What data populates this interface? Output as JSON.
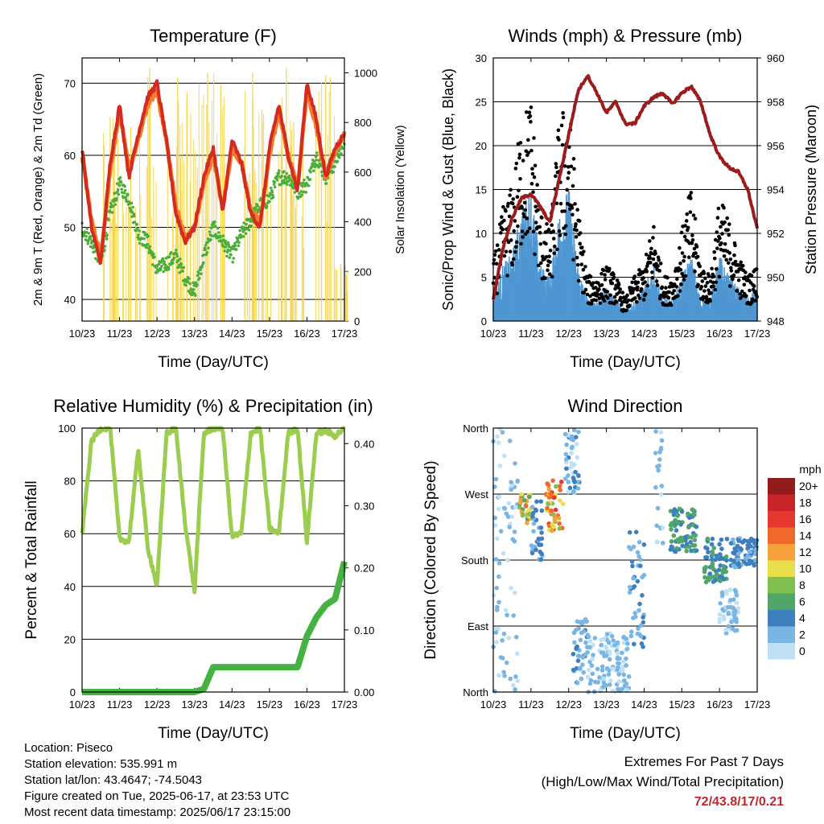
{
  "info": {
    "location": "Location: Piseco",
    "elevation": "Station elevation: 535.991 m",
    "latlon": "Station lat/lon: 43.4647; -74.5043",
    "created": "Figure created on Tue, 2025-06-17, at 23:53 UTC",
    "recent": "Most recent data timestamp: 2025/06/17 23:15:00"
  },
  "extremes": {
    "title": "Extremes For Past 7 Days",
    "subtitle": "(High/Low/Max Wind/Total Precipitation)",
    "values": "72/43.8/17/0.21"
  },
  "colors": {
    "temp2m": "#d42a1f",
    "temp9m": "#f07f2a",
    "dewpoint": "#4cae3a",
    "solar": "#f6d54a",
    "wind": "#4f97d2",
    "gust": "#000000",
    "pressure": "#9b1c1c",
    "rh": "#9ccd4e",
    "precip": "#46b243"
  },
  "x_ticks": [
    "10/23",
    "11/23",
    "12/23",
    "13/23",
    "14/23",
    "15/23",
    "16/23",
    "17/23"
  ],
  "chart_data": [
    {
      "type": "line",
      "title": "Temperature (F)",
      "xlabel": "Time (Day/UTC)",
      "ylabel": "2m & 9m T (Red, Orange) & 2m Td (Green)",
      "ylabel_right": "Solar Insolation (Yellow)",
      "ylim": [
        37,
        73.5
      ],
      "ylim_right": [
        0,
        1060
      ],
      "yticks": [
        40,
        50,
        60,
        70
      ],
      "yticks_right": [
        0,
        200,
        400,
        600,
        800,
        1000
      ],
      "grid": true,
      "x": [
        10.0,
        10.25,
        10.5,
        10.75,
        11.0,
        11.25,
        11.5,
        11.75,
        12.0,
        12.25,
        12.5,
        12.75,
        13.0,
        13.25,
        13.5,
        13.75,
        14.0,
        14.25,
        14.5,
        14.75,
        15.0,
        15.25,
        15.5,
        15.75,
        16.0,
        16.25,
        16.5,
        16.75,
        17.0
      ],
      "series": [
        {
          "name": "2m T",
          "values": [
            61,
            50,
            45,
            59,
            67,
            57,
            63,
            68,
            70,
            62,
            52,
            48,
            50,
            57,
            61,
            52,
            62,
            59,
            52,
            50,
            61,
            67,
            60,
            55,
            70,
            65,
            57,
            61,
            63
          ]
        },
        {
          "name": "9m T",
          "values": [
            60,
            51,
            46,
            58,
            66,
            58,
            62,
            67,
            69,
            62,
            53,
            48.5,
            50,
            56,
            60,
            52.5,
            61,
            59,
            52.5,
            50.5,
            60,
            66,
            60,
            55.5,
            69,
            64,
            57,
            60.5,
            63
          ]
        },
        {
          "name": "2m Td",
          "values": [
            50,
            48,
            45,
            52,
            56,
            54,
            49,
            48,
            44,
            45,
            46,
            43,
            41,
            46,
            50,
            48,
            46,
            49,
            51,
            53,
            54,
            57,
            57,
            55,
            56,
            60,
            57,
            59,
            62
          ]
        },
        {
          "name": "Solar",
          "peaks": [
            [
              10.75,
              820
            ],
            [
              11.3,
              780
            ],
            [
              11.8,
              1020
            ],
            [
              12.55,
              980
            ],
            [
              12.8,
              920
            ],
            [
              13.35,
              1000
            ],
            [
              13.7,
              950
            ],
            [
              14.55,
              1000
            ],
            [
              14.8,
              850
            ],
            [
              15.45,
              1020
            ],
            [
              15.65,
              800
            ],
            [
              16.5,
              990
            ],
            [
              16.9,
              230
            ]
          ]
        }
      ]
    },
    {
      "type": "line",
      "title": "Winds (mph) & Pressure (mb)",
      "xlabel": "Time (Day/UTC)",
      "ylabel": "Sonic/Prop Wind & Gust (Blue, Black)",
      "ylabel_right": "Station Pressure (Maroon)",
      "ylim": [
        0,
        30
      ],
      "ylim_right": [
        948,
        960
      ],
      "yticks": [
        0,
        5,
        10,
        15,
        20,
        25,
        30
      ],
      "yticks_right": [
        948,
        950,
        952,
        954,
        956,
        958,
        960
      ],
      "grid": true,
      "x": [
        10.0,
        10.25,
        10.5,
        10.75,
        11.0,
        11.25,
        11.5,
        11.75,
        12.0,
        12.25,
        12.5,
        12.75,
        13.0,
        13.25,
        13.5,
        13.75,
        14.0,
        14.25,
        14.5,
        14.75,
        15.0,
        15.25,
        15.5,
        15.75,
        16.0,
        16.25,
        16.5,
        16.75,
        17.0
      ],
      "series": [
        {
          "name": "Wind",
          "values": [
            2,
            5,
            6,
            10,
            12,
            5,
            4,
            10,
            12,
            5,
            2,
            2,
            3,
            2,
            1,
            2,
            3,
            5,
            2,
            2,
            4,
            6,
            2,
            2,
            6,
            4,
            3,
            2,
            3
          ]
        },
        {
          "name": "Gust",
          "values": [
            5,
            10,
            12,
            18,
            20,
            10,
            8,
            18,
            20,
            10,
            4,
            4,
            5,
            4,
            2,
            4,
            5,
            9,
            4,
            4,
            8,
            12,
            5,
            4,
            11,
            9,
            6,
            4,
            5
          ]
        },
        {
          "name": "Pressure",
          "values": [
            949,
            951.3,
            952.7,
            953.6,
            953.8,
            953.2,
            952.5,
            954.5,
            956.5,
            958.5,
            959.2,
            958.4,
            957.5,
            958,
            957,
            957,
            957.8,
            958.2,
            958.4,
            957.9,
            958.4,
            958.7,
            958,
            956.5,
            955.5,
            955,
            954.8,
            954,
            952.2
          ]
        }
      ]
    },
    {
      "type": "line",
      "title": "Relative Humidity (%) & Precipitation (in)",
      "xlabel": "Time (Day/UTC)",
      "ylabel": "Percent & Total Rainfall",
      "ylim": [
        0,
        100
      ],
      "ylim_right": [
        0,
        0.425
      ],
      "yticks": [
        0,
        20,
        40,
        60,
        80,
        100
      ],
      "yticks_right": [
        0.0,
        0.1,
        0.2,
        0.3,
        0.4
      ],
      "yticklabels_right": [
        "0.00",
        "0.10",
        "0.20",
        "0.30",
        "0.40"
      ],
      "grid": true,
      "x": [
        10.0,
        10.25,
        10.5,
        10.75,
        11.0,
        11.25,
        11.5,
        11.75,
        12.0,
        12.25,
        12.5,
        12.75,
        13.0,
        13.25,
        13.5,
        13.75,
        14.0,
        14.25,
        14.5,
        14.75,
        15.0,
        15.25,
        15.5,
        15.75,
        16.0,
        16.25,
        16.5,
        16.75,
        17.0
      ],
      "series": [
        {
          "name": "RH",
          "values": [
            60,
            95,
            100,
            100,
            58,
            57,
            92,
            55,
            40,
            98,
            100,
            64,
            38,
            98,
            100,
            100,
            59,
            60,
            98,
            100,
            62,
            60,
            98,
            100,
            57,
            98,
            99,
            97,
            100
          ]
        },
        {
          "name": "Precipitation",
          "values": [
            0,
            0,
            0,
            0,
            0,
            0,
            0,
            0,
            0,
            0,
            0,
            0,
            0,
            0.005,
            0.04,
            0.04,
            0.04,
            0.04,
            0.04,
            0.04,
            0.04,
            0.04,
            0.04,
            0.04,
            0.09,
            0.12,
            0.14,
            0.15,
            0.21
          ]
        }
      ]
    },
    {
      "type": "scatter",
      "title": "Wind Direction",
      "xlabel": "Time (Day/UTC)",
      "ylabel": "Direction (Colored By Speed)",
      "yticklabels": [
        "North",
        "East",
        "South",
        "West",
        "North"
      ],
      "ylim": [
        0,
        360
      ],
      "grid": true,
      "colorbar_title": "mph",
      "colorbar_labels": [
        "20+",
        "18",
        "16",
        "14",
        "12",
        "10",
        "8",
        "6",
        "4",
        "2",
        "0"
      ],
      "colorbar_colors": [
        "#921b1b",
        "#c9242a",
        "#e4382f",
        "#f1682d",
        "#f6a13c",
        "#e9df4c",
        "#7fbf4f",
        "#4fa667",
        "#3e7fbe",
        "#7ab6e4",
        "#bfe0f5"
      ],
      "clusters": [
        {
          "x": [
            10.0,
            10.7
          ],
          "dir": [
            0,
            360
          ],
          "speed": [
            0,
            3
          ]
        },
        {
          "x": [
            10.7,
            11.0
          ],
          "dir": [
            230,
            270
          ],
          "speed": [
            6,
            14
          ]
        },
        {
          "x": [
            11.0,
            11.3
          ],
          "dir": [
            180,
            260
          ],
          "speed": [
            2,
            5
          ]
        },
        {
          "x": [
            11.4,
            11.85
          ],
          "dir": [
            220,
            290
          ],
          "speed": [
            8,
            16
          ]
        },
        {
          "x": [
            11.9,
            12.3
          ],
          "dir": [
            270,
            360
          ],
          "speed": [
            0,
            4
          ]
        },
        {
          "x": [
            12.1,
            12.5
          ],
          "dir": [
            10,
            100
          ],
          "speed": [
            1,
            4
          ]
        },
        {
          "x": [
            12.5,
            13.6
          ],
          "dir": [
            0,
            80
          ],
          "speed": [
            0,
            3
          ]
        },
        {
          "x": [
            13.6,
            14.0
          ],
          "dir": [
            60,
            220
          ],
          "speed": [
            2,
            4
          ]
        },
        {
          "x": [
            14.3,
            14.5
          ],
          "dir": [
            200,
            360
          ],
          "speed": [
            0,
            3
          ]
        },
        {
          "x": [
            14.7,
            15.4
          ],
          "dir": [
            190,
            250
          ],
          "speed": [
            3,
            7
          ]
        },
        {
          "x": [
            15.6,
            16.2
          ],
          "dir": [
            150,
            210
          ],
          "speed": [
            3,
            7
          ]
        },
        {
          "x": [
            16.0,
            16.5
          ],
          "dir": [
            80,
            140
          ],
          "speed": [
            0,
            3
          ]
        },
        {
          "x": [
            16.3,
            17.0
          ],
          "dir": [
            170,
            210
          ],
          "speed": [
            2,
            5
          ]
        }
      ]
    }
  ]
}
